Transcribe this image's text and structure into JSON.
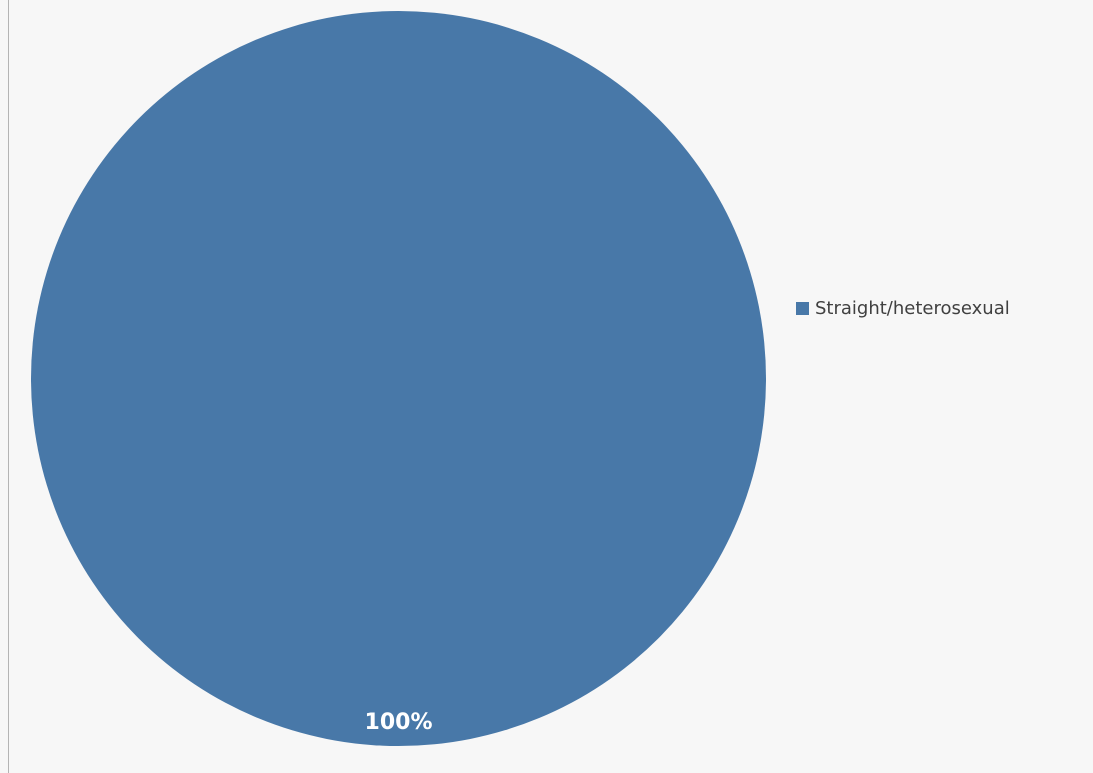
{
  "chart_data": {
    "type": "pie",
    "categories": [
      "Straight/heterosexual"
    ],
    "values": [
      100
    ],
    "data_labels": [
      "100%"
    ],
    "legend_position": "right",
    "colors": [
      "#4878a8"
    ]
  }
}
